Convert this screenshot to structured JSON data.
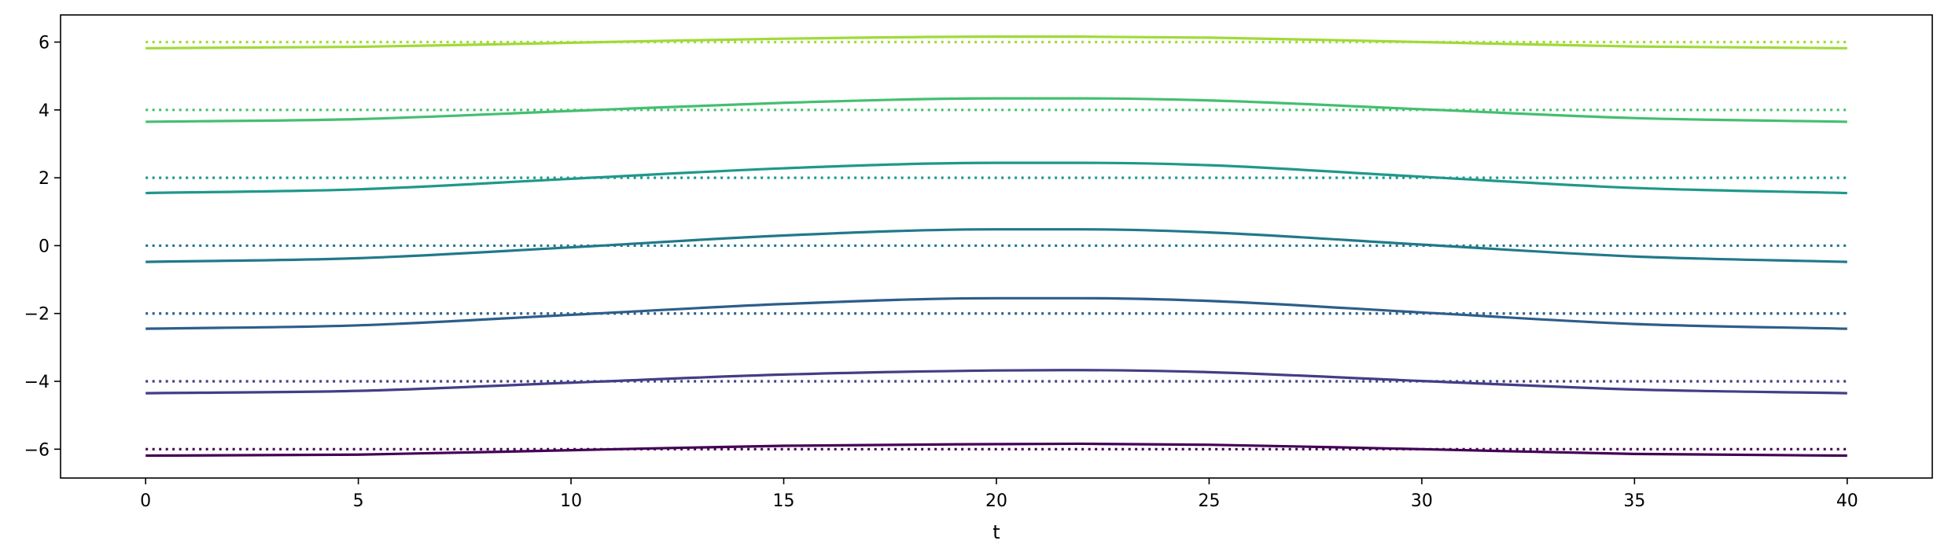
{
  "chart_data": {
    "type": "line",
    "title": "",
    "xlabel": "t",
    "ylabel": "",
    "xlim": [
      -2,
      42
    ],
    "ylim": [
      -6.85,
      6.8
    ],
    "x_ticks": [
      0,
      5,
      10,
      15,
      20,
      25,
      30,
      35,
      40
    ],
    "y_ticks": [
      -6,
      -4,
      -2,
      0,
      2,
      4,
      6
    ],
    "y_tick_labels": [
      "−6",
      "−4",
      "−2",
      "0",
      "2",
      "4",
      "6"
    ],
    "grid": false,
    "legend": "none",
    "t_range": [
      0,
      40
    ],
    "series": [
      {
        "color": "#440154",
        "style": "dotted",
        "values": [
          [
            0,
            -6.0
          ],
          [
            40,
            -6.0
          ]
        ]
      },
      {
        "color": "#440154",
        "style": "solid",
        "values": [
          [
            0,
            -6.19
          ],
          [
            5,
            -6.16
          ],
          [
            10,
            -6.03
          ],
          [
            15,
            -5.9
          ],
          [
            20,
            -5.85
          ],
          [
            22,
            -5.84
          ],
          [
            25,
            -5.87
          ],
          [
            30,
            -6.0
          ],
          [
            35,
            -6.14
          ],
          [
            40,
            -6.19
          ]
        ]
      },
      {
        "color": "#433e85",
        "style": "dotted",
        "values": [
          [
            0,
            -4.0
          ],
          [
            40,
            -4.0
          ]
        ]
      },
      {
        "color": "#433e85",
        "style": "solid",
        "values": [
          [
            0,
            -4.35
          ],
          [
            5,
            -4.28
          ],
          [
            10,
            -4.04
          ],
          [
            15,
            -3.8
          ],
          [
            20,
            -3.68
          ],
          [
            22,
            -3.67
          ],
          [
            25,
            -3.73
          ],
          [
            30,
            -3.99
          ],
          [
            35,
            -4.24
          ],
          [
            40,
            -4.35
          ]
        ]
      },
      {
        "color": "#2d5e8a",
        "style": "dotted",
        "values": [
          [
            0,
            -2.0
          ],
          [
            40,
            -2.0
          ]
        ]
      },
      {
        "color": "#2d5e8a",
        "style": "solid",
        "values": [
          [
            0,
            -2.45
          ],
          [
            5,
            -2.35
          ],
          [
            10,
            -2.04
          ],
          [
            15,
            -1.72
          ],
          [
            20,
            -1.55
          ],
          [
            22,
            -1.55
          ],
          [
            25,
            -1.63
          ],
          [
            30,
            -1.97
          ],
          [
            35,
            -2.31
          ],
          [
            40,
            -2.45
          ]
        ]
      },
      {
        "color": "#21798a",
        "style": "dotted",
        "values": [
          [
            0,
            0.0
          ],
          [
            40,
            0.0
          ]
        ]
      },
      {
        "color": "#21798a",
        "style": "solid",
        "values": [
          [
            0,
            -0.48
          ],
          [
            5,
            -0.37
          ],
          [
            10,
            -0.05
          ],
          [
            15,
            0.3
          ],
          [
            20,
            0.48
          ],
          [
            22,
            0.48
          ],
          [
            25,
            0.39
          ],
          [
            30,
            0.03
          ],
          [
            35,
            -0.32
          ],
          [
            40,
            -0.48
          ]
        ]
      },
      {
        "color": "#1f988b",
        "style": "dotted",
        "values": [
          [
            0,
            2.0
          ],
          [
            40,
            2.0
          ]
        ]
      },
      {
        "color": "#1f988b",
        "style": "solid",
        "values": [
          [
            0,
            1.55
          ],
          [
            5,
            1.66
          ],
          [
            10,
            1.97
          ],
          [
            15,
            2.28
          ],
          [
            20,
            2.44
          ],
          [
            22,
            2.44
          ],
          [
            25,
            2.37
          ],
          [
            30,
            2.03
          ],
          [
            35,
            1.7
          ],
          [
            40,
            1.55
          ]
        ]
      },
      {
        "color": "#44bf70",
        "style": "dotted",
        "values": [
          [
            0,
            4.0
          ],
          [
            40,
            4.0
          ]
        ]
      },
      {
        "color": "#44bf70",
        "style": "solid",
        "values": [
          [
            0,
            3.65
          ],
          [
            5,
            3.73
          ],
          [
            10,
            3.97
          ],
          [
            15,
            4.21
          ],
          [
            20,
            4.34
          ],
          [
            22,
            4.34
          ],
          [
            25,
            4.28
          ],
          [
            30,
            4.02
          ],
          [
            35,
            3.76
          ],
          [
            40,
            3.65
          ]
        ]
      },
      {
        "color": "#a0da39",
        "style": "dotted",
        "values": [
          [
            0,
            6.0
          ],
          [
            40,
            6.0
          ]
        ]
      },
      {
        "color": "#a0da39",
        "style": "solid",
        "values": [
          [
            0,
            5.82
          ],
          [
            5,
            5.86
          ],
          [
            10,
            5.98
          ],
          [
            15,
            6.1
          ],
          [
            20,
            6.16
          ],
          [
            22,
            6.16
          ],
          [
            25,
            6.13
          ],
          [
            30,
            6.0
          ],
          [
            35,
            5.87
          ],
          [
            40,
            5.82
          ]
        ]
      }
    ]
  }
}
